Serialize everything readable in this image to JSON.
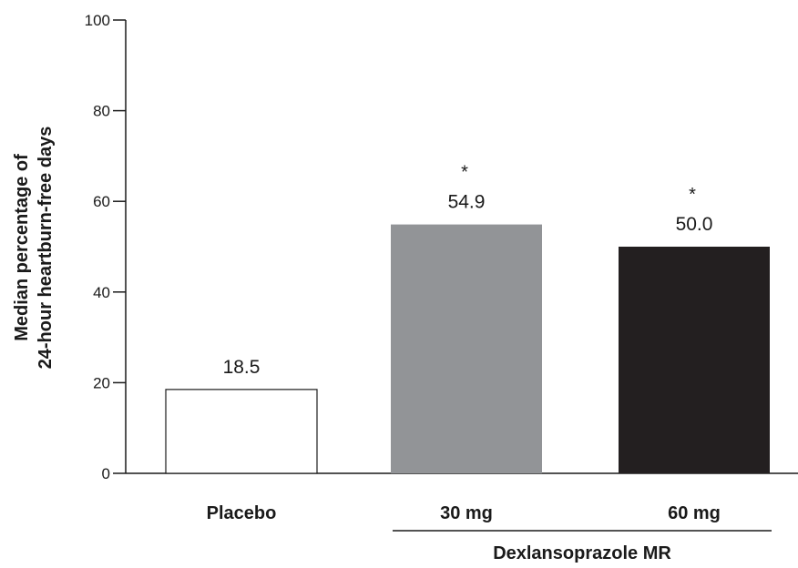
{
  "chart_data": {
    "type": "bar",
    "title": "",
    "ylabel": [
      "Median percentage of",
      "24-hour heartburn-free days"
    ],
    "xlabel": "",
    "ylim": [
      0,
      100
    ],
    "yticks": [
      0,
      20,
      40,
      60,
      80,
      100
    ],
    "grid": false,
    "categories": [
      "Placebo",
      "30 mg",
      "60 mg"
    ],
    "values": [
      18.5,
      54.9,
      50.0
    ],
    "data_labels": [
      "18.5",
      "54.9",
      "50.0"
    ],
    "annotations": [
      "",
      "*",
      "*"
    ],
    "colors": [
      "#ffffff",
      "#929497",
      "#231f20"
    ],
    "group_label": "Dexlansoprazole MR",
    "group_spans": [
      "30 mg",
      "60 mg"
    ]
  }
}
